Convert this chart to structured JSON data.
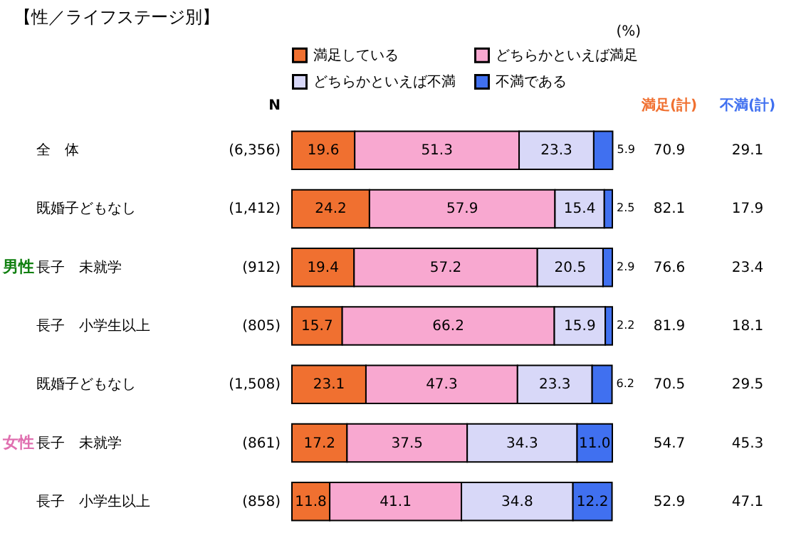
{
  "chart_data": {
    "type": "bar",
    "orientation": "horizontal",
    "stacked": true,
    "title": "【性／ライフステージ別】",
    "categories": [
      "全　体",
      "既婚子どもなし",
      "長子　未就学",
      "長子　小学生以上",
      "既婚子どもなし",
      "長子　未就学",
      "長子　小学生以上"
    ],
    "series": [
      {
        "name": "満足している",
        "color": "#f07030",
        "values": [
          19.6,
          24.2,
          19.4,
          15.7,
          23.1,
          17.2,
          11.8
        ]
      },
      {
        "name": "どちらかといえば満足",
        "color": "#f8a8d0",
        "values": [
          51.3,
          57.9,
          57.2,
          66.2,
          47.3,
          37.5,
          41.1
        ]
      },
      {
        "name": "どちらかといえば不満",
        "color": "#d8d8f8",
        "values": [
          23.3,
          15.4,
          20.5,
          15.9,
          23.3,
          34.3,
          34.8
        ]
      },
      {
        "name": "不満である",
        "color": "#4070f0",
        "values": [
          5.9,
          2.5,
          2.9,
          2.2,
          6.2,
          11.0,
          12.2
        ],
        "value_labels": [
          "5.9",
          "2.5",
          "2.9",
          "2.2",
          "6.2",
          "11.0",
          "12.2"
        ]
      }
    ],
    "xlim": [
      0,
      100
    ],
    "tick_labels": "y",
    "data_labels": true,
    "legend": "top",
    "annotations": [
      "(%)",
      "N",
      "(6,356)",
      "(1,412)",
      "(912)",
      "(805)",
      "(1,508)",
      "(861)",
      "(858)",
      "満足(計)",
      "70.9",
      "82.1",
      "76.6",
      "81.9",
      "70.5",
      "54.7",
      "52.9",
      "不満(計)",
      "29.1",
      "17.9",
      "23.4",
      "18.1",
      "29.5",
      "45.3",
      "47.1",
      "男性",
      "女性"
    ]
  }
}
